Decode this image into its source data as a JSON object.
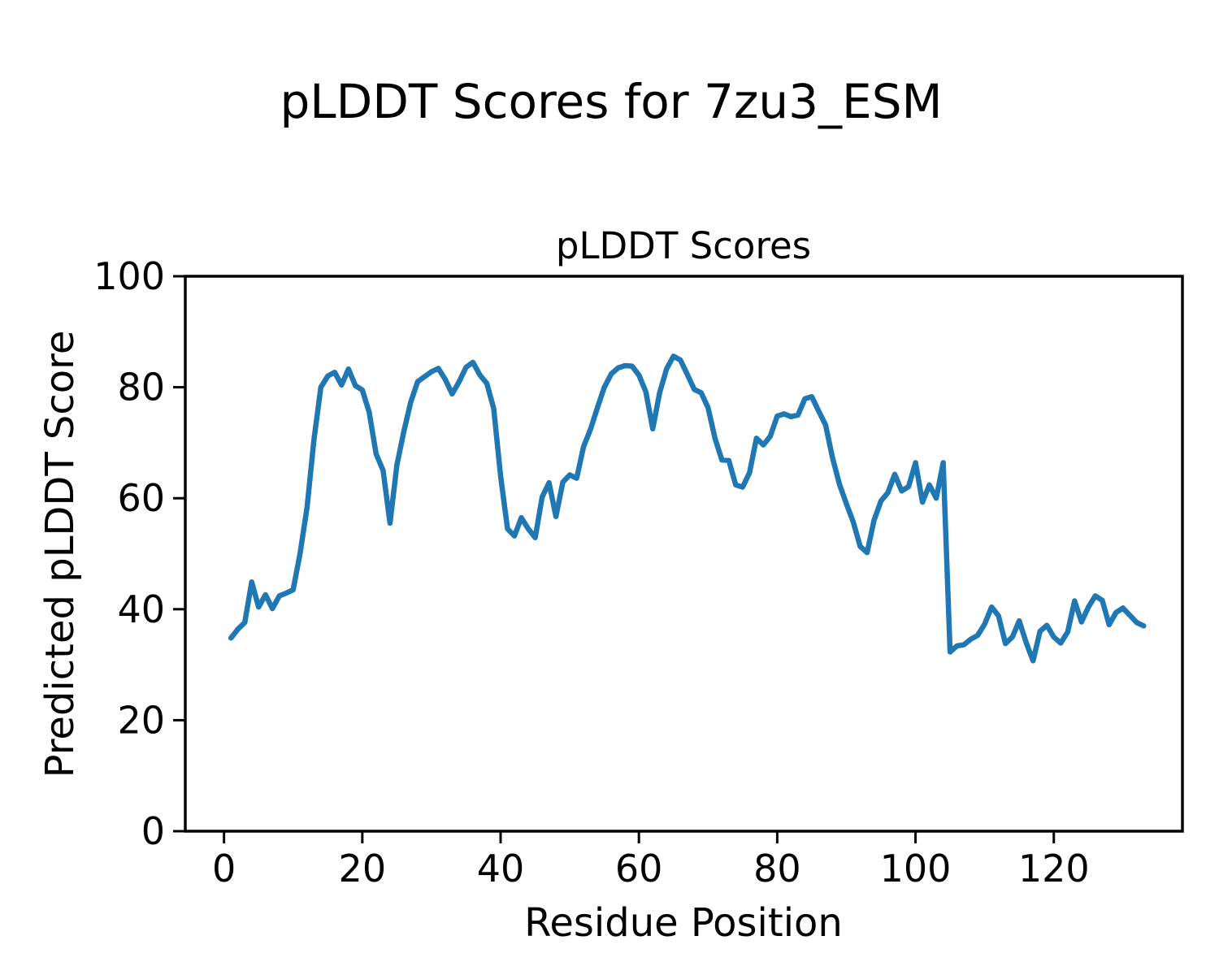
{
  "chart_data": {
    "type": "line",
    "figure_title": "pLDDT Scores for 7zu3_ESM",
    "title": "pLDDT Scores",
    "xlabel": "Residue Position",
    "ylabel": "Predicted pLDDT Score",
    "xlim": [
      -5.6,
      138.6
    ],
    "ylim": [
      0,
      100
    ],
    "x_ticks": [
      0,
      20,
      40,
      60,
      80,
      100,
      120
    ],
    "y_ticks": [
      0,
      20,
      40,
      60,
      80,
      100
    ],
    "grid": false,
    "legend": "none",
    "line_color": "#1f77b4",
    "axis_color": "#000000",
    "series": [
      {
        "name": "pLDDT",
        "x_start": 1,
        "x_step": 1,
        "values": [
          34.8,
          36.4,
          37.6,
          44.9,
          40.4,
          42.6,
          40.1,
          42.4,
          42.9,
          43.5,
          50.0,
          58.3,
          70.5,
          80.0,
          82.0,
          82.7,
          80.4,
          83.3,
          80.3,
          79.5,
          75.5,
          68.0,
          65.0,
          55.5,
          66.0,
          72.0,
          77.3,
          81.0,
          81.9,
          82.8,
          83.4,
          81.4,
          78.8,
          81.0,
          83.6,
          84.5,
          82.2,
          80.7,
          76.2,
          64.0,
          54.5,
          53.2,
          56.5,
          54.5,
          52.9,
          60.2,
          62.8,
          56.7,
          62.9,
          64.2,
          63.6,
          69.3,
          72.4,
          76.3,
          80.0,
          82.4,
          83.5,
          83.9,
          83.8,
          82.2,
          79.2,
          72.5,
          79.0,
          83.3,
          85.6,
          84.9,
          82.3,
          79.6,
          79.0,
          76.3,
          70.8,
          66.9,
          66.8,
          62.4,
          62.0,
          64.6,
          70.8,
          69.6,
          71.2,
          74.8,
          75.2,
          74.7,
          75.0,
          77.9,
          78.3,
          75.7,
          73.2,
          67.3,
          62.5,
          59.0,
          55.7,
          51.3,
          50.2,
          56.0,
          59.5,
          61.0,
          64.3,
          61.3,
          62.1,
          66.4,
          59.3,
          62.4,
          60.0,
          66.4,
          32.3,
          33.4,
          33.6,
          34.6,
          35.3,
          37.3,
          40.4,
          38.8,
          33.8,
          35.0,
          37.9,
          34.0,
          30.7,
          36.0,
          37.1,
          35.0,
          33.9,
          35.9,
          41.5,
          37.7,
          40.4,
          42.4,
          41.6,
          37.2,
          39.4,
          40.2,
          38.9,
          37.6,
          37.0
        ]
      }
    ]
  }
}
